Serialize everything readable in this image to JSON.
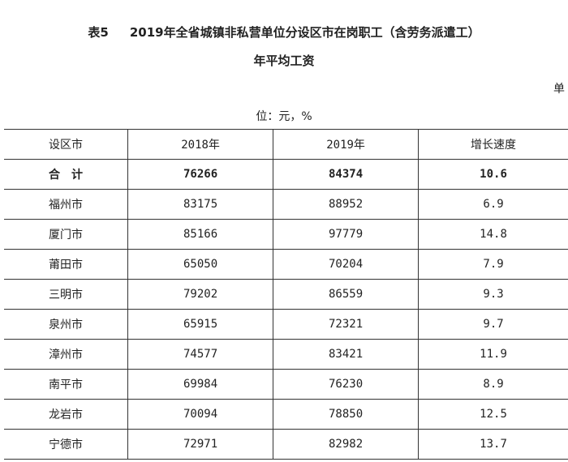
{
  "title": {
    "label": "表5",
    "text": "2019年全省城镇非私营单位分设区市在岗职工（含劳务派遣工）",
    "line2": "年平均工资"
  },
  "unit": {
    "part1": "单",
    "part2": "位：元，%"
  },
  "table": {
    "headers": [
      "设区市",
      "2018年",
      "2019年",
      "增长速度"
    ],
    "total": {
      "name": "合　计",
      "y2018": "76266",
      "y2019": "84374",
      "growth": "10.6"
    },
    "rows": [
      {
        "name": "福州市",
        "y2018": "83175",
        "y2019": "88952",
        "growth": "6.9"
      },
      {
        "name": "厦门市",
        "y2018": "85166",
        "y2019": "97779",
        "growth": "14.8"
      },
      {
        "name": "莆田市",
        "y2018": "65050",
        "y2019": "70204",
        "growth": "7.9"
      },
      {
        "name": "三明市",
        "y2018": "79202",
        "y2019": "86559",
        "growth": "9.3"
      },
      {
        "name": "泉州市",
        "y2018": "65915",
        "y2019": "72321",
        "growth": "9.7"
      },
      {
        "name": "漳州市",
        "y2018": "74577",
        "y2019": "83421",
        "growth": "11.9"
      },
      {
        "name": "南平市",
        "y2018": "69984",
        "y2019": "76230",
        "growth": "8.9"
      },
      {
        "name": "龙岩市",
        "y2018": "70094",
        "y2019": "78850",
        "growth": "12.5"
      },
      {
        "name": "宁德市",
        "y2018": "72971",
        "y2019": "82982",
        "growth": "13.7"
      }
    ]
  }
}
